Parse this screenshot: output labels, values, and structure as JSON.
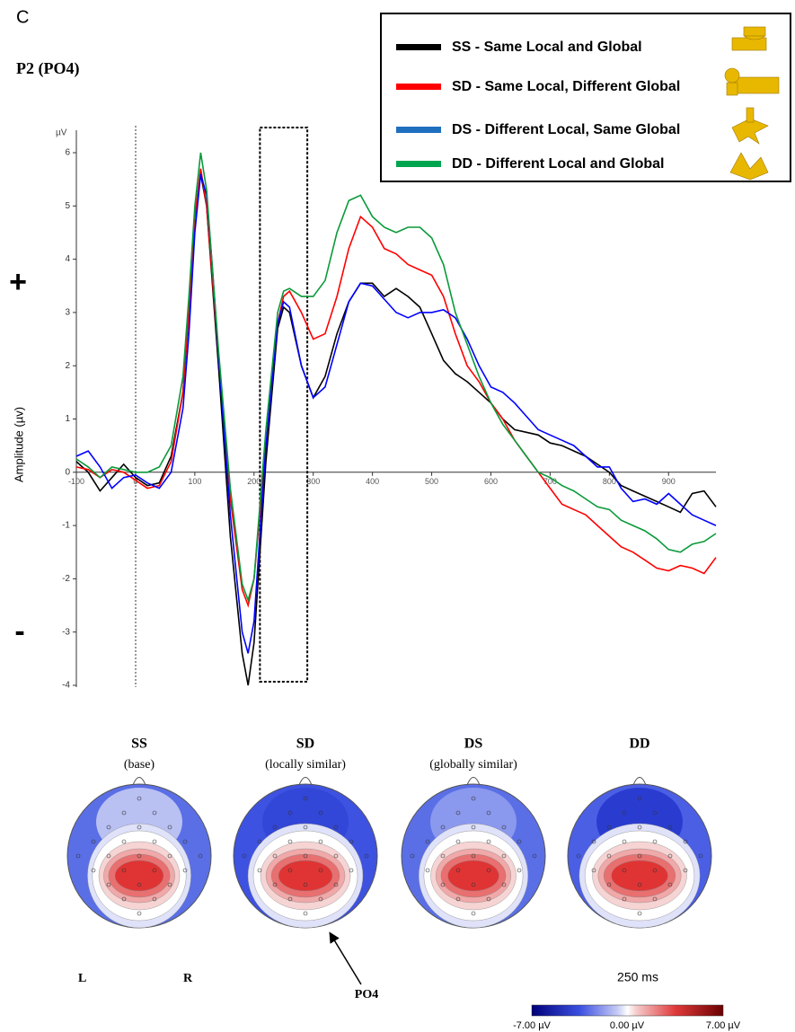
{
  "panel_label": "C",
  "chart_data": {
    "type": "line",
    "title": "P2 (PO4)",
    "ylabel": "Amplitude (µv)",
    "y_unit": "µV",
    "annotations": [
      "+",
      "-"
    ],
    "xlim": [
      -100,
      980
    ],
    "ylim": [
      -4,
      6
    ],
    "xticks": [
      -100,
      0,
      100,
      200,
      300,
      400,
      500,
      600,
      700,
      800,
      900
    ],
    "yticks": [
      -4,
      -3,
      -2,
      -1,
      0,
      1,
      2,
      3,
      4,
      5,
      6
    ],
    "window": [
      210,
      290
    ],
    "x": [
      -100,
      -80,
      -60,
      -40,
      -20,
      0,
      20,
      40,
      60,
      80,
      90,
      100,
      110,
      120,
      130,
      140,
      160,
      180,
      190,
      200,
      220,
      240,
      250,
      260,
      280,
      300,
      320,
      340,
      360,
      380,
      400,
      420,
      440,
      460,
      480,
      500,
      520,
      540,
      560,
      580,
      600,
      620,
      640,
      660,
      680,
      700,
      720,
      740,
      760,
      780,
      800,
      820,
      840,
      860,
      880,
      900,
      920,
      940,
      960,
      980
    ],
    "series": [
      {
        "name": "SS - Same Local and Global",
        "color": "#000000",
        "values": [
          0.2,
          0.0,
          -0.35,
          -0.1,
          0.15,
          -0.1,
          -0.25,
          -0.2,
          0.3,
          1.5,
          3.0,
          4.8,
          5.6,
          5.0,
          3.5,
          2.0,
          -1.2,
          -3.4,
          -4.0,
          -3.2,
          0.2,
          2.7,
          3.1,
          3.0,
          2.0,
          1.4,
          1.8,
          2.6,
          3.2,
          3.55,
          3.55,
          3.3,
          3.45,
          3.3,
          3.1,
          2.6,
          2.1,
          1.85,
          1.7,
          1.5,
          1.3,
          1.0,
          0.8,
          0.75,
          0.7,
          0.55,
          0.5,
          0.4,
          0.3,
          0.15,
          0.0,
          -0.25,
          -0.35,
          -0.45,
          -0.55,
          -0.65,
          -0.75,
          -0.4,
          -0.35,
          -0.65
        ]
      },
      {
        "name": "SD - Same Local, Different Global",
        "color": "#ff0000",
        "values": [
          0.1,
          0.05,
          -0.1,
          0.05,
          0.0,
          -0.15,
          -0.3,
          -0.25,
          0.2,
          1.5,
          3.0,
          4.8,
          5.7,
          5.0,
          3.6,
          2.2,
          -0.5,
          -2.2,
          -2.5,
          -2.0,
          0.5,
          2.8,
          3.3,
          3.4,
          3.0,
          2.5,
          2.6,
          3.3,
          4.2,
          4.8,
          4.6,
          4.2,
          4.1,
          3.9,
          3.8,
          3.7,
          3.3,
          2.6,
          2.0,
          1.7,
          1.3,
          1.0,
          0.6,
          0.3,
          0.0,
          -0.3,
          -0.6,
          -0.7,
          -0.8,
          -1.0,
          -1.2,
          -1.4,
          -1.5,
          -1.65,
          -1.8,
          -1.85,
          -1.75,
          -1.8,
          -1.9,
          -1.6
        ]
      },
      {
        "name": "DS - Different Local, Same Global",
        "color": "#0000ff",
        "swatch": "#1f6fbf",
        "values": [
          0.3,
          0.4,
          0.1,
          -0.3,
          -0.1,
          -0.05,
          -0.2,
          -0.3,
          0.0,
          1.2,
          2.6,
          4.5,
          5.6,
          5.2,
          3.8,
          2.2,
          -0.8,
          -3.0,
          -3.4,
          -2.8,
          0.5,
          2.8,
          3.2,
          3.1,
          2.0,
          1.4,
          1.6,
          2.4,
          3.2,
          3.55,
          3.5,
          3.25,
          3.0,
          2.9,
          3.0,
          3.0,
          3.05,
          2.9,
          2.5,
          2.0,
          1.6,
          1.5,
          1.3,
          1.05,
          0.8,
          0.7,
          0.6,
          0.5,
          0.3,
          0.1,
          0.1,
          -0.3,
          -0.55,
          -0.5,
          -0.6,
          -0.4,
          -0.6,
          -0.8,
          -0.9,
          -1.0
        ]
      },
      {
        "name": "DD - Different Local and Global",
        "color": "#0a9a3a",
        "swatch": "#00a550",
        "values": [
          0.25,
          0.1,
          -0.1,
          0.1,
          0.05,
          0.0,
          0.0,
          0.1,
          0.5,
          1.8,
          3.3,
          5.0,
          6.0,
          5.3,
          3.8,
          2.3,
          -0.3,
          -2.1,
          -2.4,
          -2.0,
          0.8,
          3.0,
          3.4,
          3.45,
          3.3,
          3.3,
          3.6,
          4.5,
          5.1,
          5.2,
          4.8,
          4.6,
          4.5,
          4.6,
          4.6,
          4.4,
          3.9,
          3.0,
          2.4,
          1.8,
          1.3,
          0.9,
          0.6,
          0.3,
          0.0,
          -0.1,
          -0.25,
          -0.35,
          -0.5,
          -0.65,
          -0.7,
          -0.9,
          -1.0,
          -1.1,
          -1.25,
          -1.45,
          -1.5,
          -1.35,
          -1.3,
          -1.15
        ]
      }
    ]
  },
  "topomaps": {
    "maps": [
      {
        "label": "SS",
        "subtitle": "(base)"
      },
      {
        "label": "SD",
        "subtitle": "(locally similar)"
      },
      {
        "label": "DS",
        "subtitle": "(globally similar)"
      },
      {
        "label": "DD",
        "subtitle": null
      }
    ],
    "left": "L",
    "right": "R",
    "electrode": "PO4",
    "time": "250 ms",
    "colorbar": [
      "-7.00 µV",
      "0.00 µV",
      "7.00 µV"
    ]
  }
}
